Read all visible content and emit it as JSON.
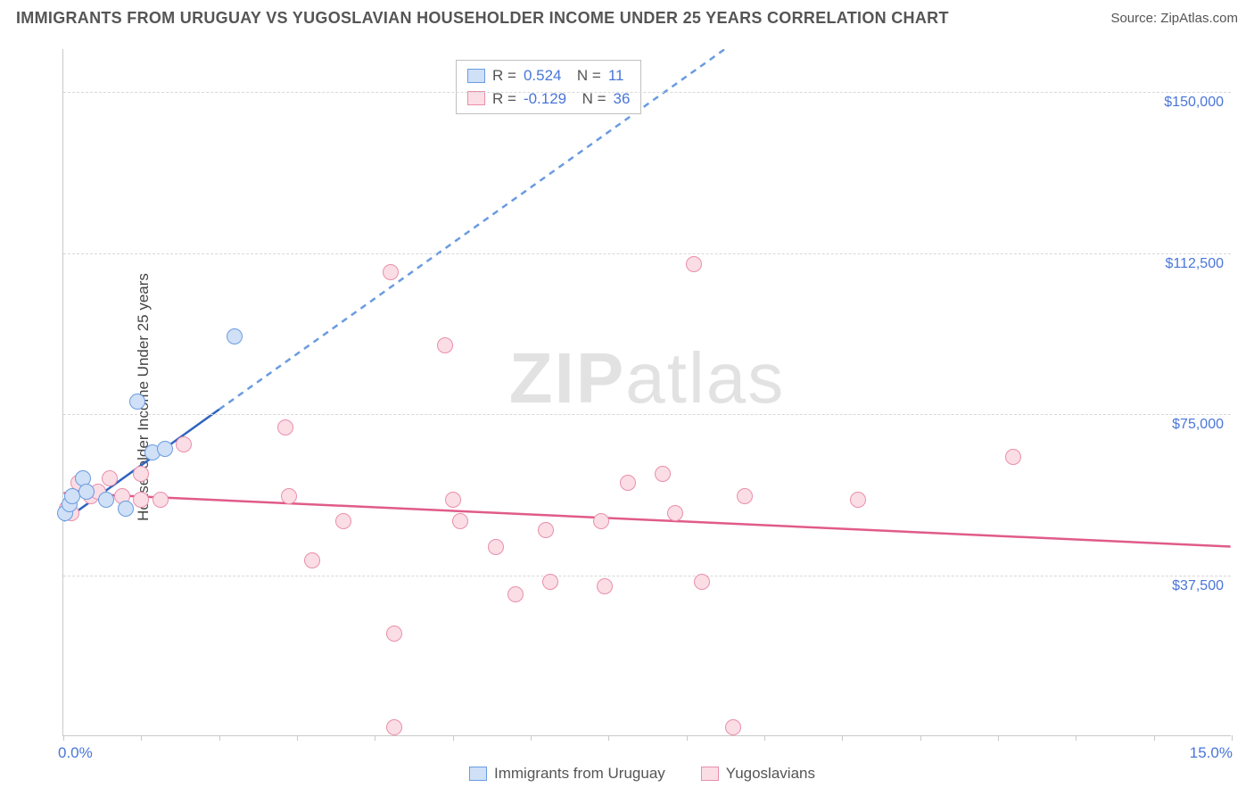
{
  "title": "IMMIGRANTS FROM URUGUAY VS YUGOSLAVIAN HOUSEHOLDER INCOME UNDER 25 YEARS CORRELATION CHART",
  "source_label": "Source: ZipAtlas.com",
  "y_axis_label": "Householder Income Under 25 years",
  "watermark_a": "ZIP",
  "watermark_b": "atlas",
  "chart": {
    "type": "scatter-correlation",
    "xlim": [
      0,
      15
    ],
    "ylim": [
      0,
      160000
    ],
    "x_tick_percent_marks": [
      0,
      1,
      2,
      3,
      4,
      5,
      6,
      7,
      8,
      9,
      10,
      11,
      12,
      13,
      14,
      15
    ],
    "x_labels": [
      {
        "val": 0,
        "text": "0.0%"
      },
      {
        "val": 15,
        "text": "15.0%"
      }
    ],
    "y_grid": [
      {
        "val": 37500,
        "text": "$37,500"
      },
      {
        "val": 75000,
        "text": "$75,000"
      },
      {
        "val": 112500,
        "text": "$112,500"
      },
      {
        "val": 150000,
        "text": "$150,000"
      }
    ],
    "background_color": "#ffffff",
    "grid_color": "#d8d8d8",
    "axis_color": "#c9c9c9",
    "series": {
      "uruguay": {
        "label": "Immigrants from Uruguay",
        "marker_fill": "#cfe0f7",
        "marker_stroke": "#6a9be0",
        "line_color": "#2f64c0",
        "line_dash_color": "#6a9be0",
        "marker_radius": 9,
        "R": "0.524",
        "N": "11",
        "points": [
          {
            "x": 0.02,
            "y": 52000
          },
          {
            "x": 0.08,
            "y": 54000
          },
          {
            "x": 0.12,
            "y": 56000
          },
          {
            "x": 0.25,
            "y": 60000
          },
          {
            "x": 0.3,
            "y": 57000
          },
          {
            "x": 0.55,
            "y": 55000
          },
          {
            "x": 0.8,
            "y": 53000
          },
          {
            "x": 0.95,
            "y": 78000
          },
          {
            "x": 1.15,
            "y": 66000
          },
          {
            "x": 1.3,
            "y": 67000
          },
          {
            "x": 2.2,
            "y": 93000
          }
        ],
        "trend_solid": {
          "x1": 0.0,
          "y1": 50000,
          "x2": 2.0,
          "y2": 76000
        },
        "trend_dash": {
          "x1": 2.0,
          "y1": 76000,
          "x2": 8.5,
          "y2": 160000
        }
      },
      "yugoslavians": {
        "label": "Yugoslavians",
        "marker_fill": "#fbdde5",
        "marker_stroke": "#e98fab",
        "line_color": "#e05b8a",
        "marker_radius": 9,
        "R": "-0.129",
        "N": "36",
        "points": [
          {
            "x": 0.05,
            "y": 53000
          },
          {
            "x": 0.1,
            "y": 52000
          },
          {
            "x": 0.35,
            "y": 56000
          },
          {
            "x": 0.45,
            "y": 57000
          },
          {
            "x": 0.75,
            "y": 56000
          },
          {
            "x": 1.0,
            "y": 55000
          },
          {
            "x": 1.25,
            "y": 55000
          },
          {
            "x": 1.55,
            "y": 68000
          },
          {
            "x": 2.85,
            "y": 72000
          },
          {
            "x": 2.9,
            "y": 56000
          },
          {
            "x": 3.2,
            "y": 41000
          },
          {
            "x": 3.6,
            "y": 50000
          },
          {
            "x": 4.2,
            "y": 108000
          },
          {
            "x": 4.25,
            "y": 24000
          },
          {
            "x": 4.25,
            "y": 2000
          },
          {
            "x": 4.9,
            "y": 91000
          },
          {
            "x": 5.1,
            "y": 50000
          },
          {
            "x": 5.55,
            "y": 44000
          },
          {
            "x": 5.8,
            "y": 33000
          },
          {
            "x": 6.2,
            "y": 48000
          },
          {
            "x": 6.25,
            "y": 36000
          },
          {
            "x": 6.9,
            "y": 50000
          },
          {
            "x": 6.95,
            "y": 35000
          },
          {
            "x": 7.25,
            "y": 59000
          },
          {
            "x": 7.7,
            "y": 61000
          },
          {
            "x": 7.85,
            "y": 52000
          },
          {
            "x": 8.1,
            "y": 110000
          },
          {
            "x": 8.2,
            "y": 36000
          },
          {
            "x": 8.6,
            "y": 2000
          },
          {
            "x": 8.75,
            "y": 56000
          },
          {
            "x": 10.2,
            "y": 55000
          },
          {
            "x": 12.2,
            "y": 65000
          },
          {
            "x": 1.0,
            "y": 61000
          },
          {
            "x": 0.6,
            "y": 60000
          },
          {
            "x": 0.2,
            "y": 59000
          },
          {
            "x": 5.0,
            "y": 55000
          }
        ],
        "trend": {
          "x1": 0.0,
          "y1": 56500,
          "x2": 15.0,
          "y2": 44000
        }
      }
    }
  },
  "legend": [
    {
      "key": "uruguay"
    },
    {
      "key": "yugoslavians"
    }
  ]
}
